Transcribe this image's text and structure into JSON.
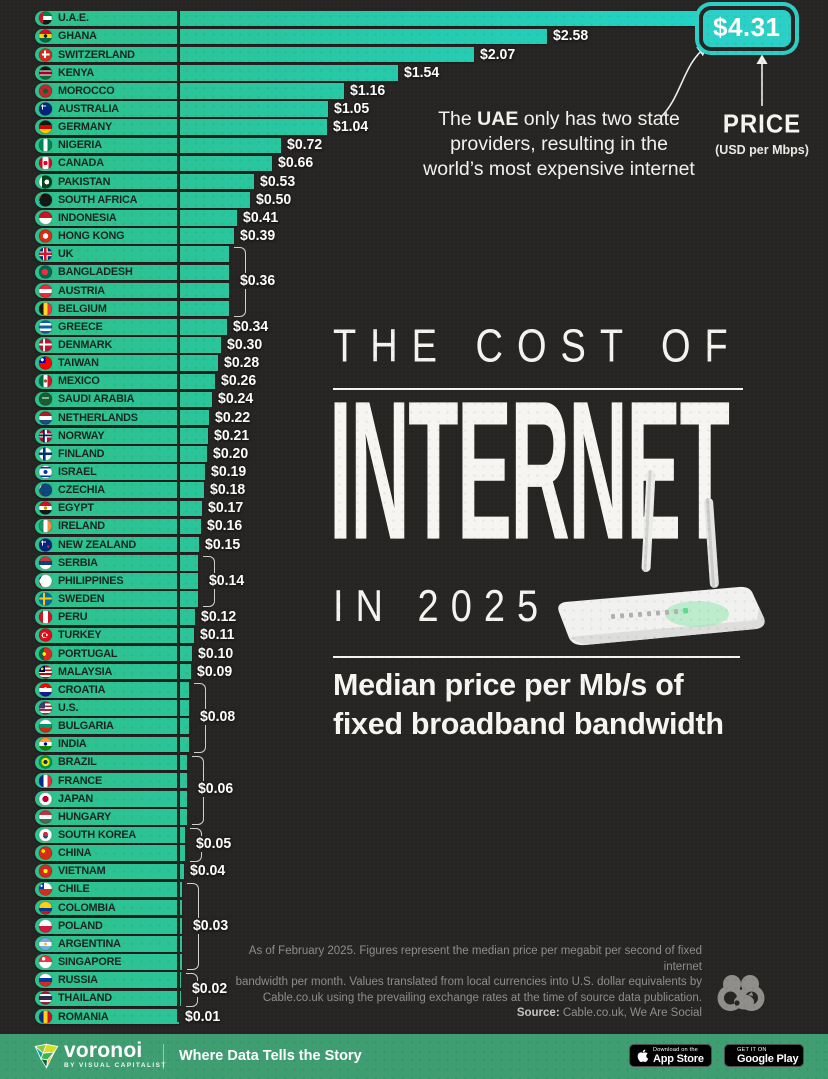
{
  "chart_data": {
    "type": "bar",
    "title": "THE COST OF INTERNET IN 2025",
    "subtitle": "Median price per Mb/s of fixed broadband bandwidth",
    "unit": "USD per Mbps",
    "source": "Cable.co.uk, We Are Social",
    "xlim": [
      0,
      4.31
    ],
    "categories": [
      "U.A.E.",
      "GHANA",
      "SWITZERLAND",
      "KENYA",
      "MOROCCO",
      "AUSTRALIA",
      "GERMANY",
      "NIGERIA",
      "CANADA",
      "PAKISTAN",
      "SOUTH AFRICA",
      "INDONESIA",
      "HONG KONG",
      "UK",
      "BANGLADESH",
      "AUSTRIA",
      "BELGIUM",
      "GREECE",
      "DENMARK",
      "TAIWAN",
      "MEXICO",
      "SAUDI ARABIA",
      "NETHERLANDS",
      "NORWAY",
      "FINLAND",
      "ISRAEL",
      "CZECHIA",
      "EGYPT",
      "IRELAND",
      "NEW ZEALAND",
      "SERBIA",
      "PHILIPPINES",
      "SWEDEN",
      "PERU",
      "TURKEY",
      "PORTUGAL",
      "MALAYSIA",
      "CROATIA",
      "U.S.",
      "BULGARIA",
      "INDIA",
      "BRAZIL",
      "FRANCE",
      "JAPAN",
      "HUNGARY",
      "SOUTH KOREA",
      "CHINA",
      "VIETNAM",
      "CHILE",
      "COLOMBIA",
      "POLAND",
      "ARGENTINA",
      "SINGAPORE",
      "RUSSIA",
      "THAILAND",
      "ROMANIA"
    ],
    "values": [
      4.31,
      2.58,
      2.07,
      1.54,
      1.16,
      1.05,
      1.04,
      0.72,
      0.66,
      0.53,
      0.5,
      0.41,
      0.39,
      0.36,
      0.36,
      0.36,
      0.36,
      0.34,
      0.3,
      0.28,
      0.26,
      0.24,
      0.22,
      0.21,
      0.2,
      0.19,
      0.18,
      0.17,
      0.16,
      0.15,
      0.14,
      0.14,
      0.14,
      0.12,
      0.11,
      0.1,
      0.09,
      0.08,
      0.08,
      0.08,
      0.08,
      0.06,
      0.06,
      0.06,
      0.06,
      0.05,
      0.05,
      0.04,
      0.03,
      0.03,
      0.03,
      0.03,
      0.03,
      0.02,
      0.02,
      0.01
    ],
    "labels": [
      "$4.31",
      "$2.58",
      "$2.07",
      "$1.54",
      "$1.16",
      "$1.05",
      "$1.04",
      "$0.72",
      "$0.66",
      "$0.53",
      "$0.50",
      "$0.41",
      "$0.39",
      "$0.36",
      "$0.36",
      "$0.36",
      "$0.36",
      "$0.34",
      "$0.30",
      "$0.28",
      "$0.26",
      "$0.24",
      "$0.22",
      "$0.21",
      "$0.20",
      "$0.19",
      "$0.18",
      "$0.17",
      "$0.16",
      "$0.15",
      "$0.14",
      "$0.14",
      "$0.14",
      "$0.12",
      "$0.11",
      "$0.10",
      "$0.09",
      "$0.08",
      "$0.08",
      "$0.08",
      "$0.08",
      "$0.06",
      "$0.06",
      "$0.06",
      "$0.06",
      "$0.05",
      "$0.05",
      "$0.04",
      "$0.03",
      "$0.03",
      "$0.03",
      "$0.03",
      "$0.03",
      "$0.02",
      "$0.02",
      "$0.01"
    ],
    "groups": [
      {
        "from": 13,
        "to": 16,
        "label": "$0.36"
      },
      {
        "from": 30,
        "to": 32,
        "label": "$0.14"
      },
      {
        "from": 37,
        "to": 40,
        "label": "$0.08"
      },
      {
        "from": 41,
        "to": 44,
        "label": "$0.06"
      },
      {
        "from": 45,
        "to": 46,
        "label": "$0.05"
      },
      {
        "from": 48,
        "to": 52,
        "label": "$0.03"
      },
      {
        "from": 53,
        "to": 54,
        "label": "$0.02"
      }
    ],
    "flags": [
      "linear-gradient(90deg,#ce1126 0 30%,rgba(0,0,0,0) 30%),linear-gradient(180deg,#00843d 0 34%,#fff 34% 67%,#151515 67%)",
      "radial-gradient(circle 1.8px at 50% 50%,#111 97%,rgba(0,0,0,0)),linear-gradient(180deg,#ce1126 0 34%,#fcd116 34% 67%,#006b3f 67%)",
      "linear-gradient(#fff,#fff) 50% 50%/58% 17% no-repeat,linear-gradient(#fff,#fff) 50% 50%/17% 58% no-repeat,#d52b1e",
      "linear-gradient(180deg,#151515 0 30%,#fff 30% 38%,#a2001d 38% 62%,#fff 62% 70%,#046a38 70%)",
      "radial-gradient(circle 2.4px at 50% 50%,#006233 97%,rgba(0,0,0,0)),#c1272d",
      "linear-gradient(#fff,#fff) 26% 26%/42% 9% no-repeat,linear-gradient(#fff,#fff) 26% 26%/9% 42% no-repeat,#00247d",
      "linear-gradient(180deg,#151515 0 34%,#dd0000 34% 67%,#ffce00 67%)",
      "linear-gradient(90deg,#008751 0 34%,#fff 34% 67%,#008751 67%)",
      "radial-gradient(circle 2.2px at 50% 50%,#d80621 97%,rgba(0,0,0,0)),linear-gradient(90deg,#d80621 0 28%,#fff 28% 72%,#d80621 72%)",
      "radial-gradient(circle 2.4px at 60% 50%,#fff 97%,rgba(0,0,0,0)),linear-gradient(90deg,#fff 0 24%,#01411c 24%)",
      "conic-gradient(from 30deg at 0% 50%,#151515 0 120deg,rgba(0,0,0,0) 120deg),linear-gradient(180deg,#e03c31 0 38%,#fff 38% 45%,#007749 45% 58%,#fff 58% 64%,#001489 64%)",
      "linear-gradient(180deg,#ce1126 0 50%,#fff 50%)",
      "radial-gradient(circle 2.8px at 50% 50%,#fff 97%,rgba(0,0,0,0)),#de2910",
      "linear-gradient(#cf142b,#cf142b) 50% 50%/100% 20% no-repeat,linear-gradient(#cf142b,#cf142b) 50% 50%/20% 100% no-repeat,linear-gradient(#fff,#fff) 50% 50%/100% 36% no-repeat,linear-gradient(#fff,#fff) 50% 50%/36% 100% no-repeat,#00247d",
      "radial-gradient(circle 3.2px at 45% 50%,#f42a41 97%,rgba(0,0,0,0)),#006a4e",
      "linear-gradient(180deg,#ed2939 0 34%,#fff 34% 67%,#ed2939 67%)",
      "linear-gradient(90deg,#151515 0 34%,#fdda24 34% 67%,#ef3340 67%)",
      "linear-gradient(180deg,#0d5eaf 0 20%,#fff 20% 40%,#0d5eaf 40% 60%,#fff 60% 80%,#0d5eaf 80%)",
      "linear-gradient(#fff,#fff) 50% 50%/100% 18% no-repeat,linear-gradient(#fff,#fff) 40% 50%/18% 100% no-repeat,#c8102e",
      "radial-gradient(circle 1.6px at 25% 25%,#fff 97%,rgba(0,0,0,0)),linear-gradient(90deg,#000095 0 50%,rgba(0,0,0,0) 50%) 0 0/100% 50% no-repeat,#fe0000",
      "radial-gradient(circle 1.8px at 50% 50%,#8c6239 95%,rgba(0,0,0,0)),linear-gradient(90deg,#006847 0 34%,#fff 34% 67%,#ce1126 67%)",
      "linear-gradient(#fff,#fff) 50% 40%/56% 9% no-repeat,#165d31",
      "linear-gradient(180deg,#ae1c28 0 34%,#fff 34% 67%,#21468b 67%)",
      "linear-gradient(#00205b,#00205b) 50% 50%/100% 14% no-repeat,linear-gradient(#00205b,#00205b) 40% 50%/14% 100% no-repeat,linear-gradient(#fff,#fff) 50% 50%/100% 30% no-repeat,linear-gradient(#fff,#fff) 40% 50%/30% 100% no-repeat,#ba0c2f",
      "linear-gradient(#002f6c,#002f6c) 50% 50%/100% 20% no-repeat,linear-gradient(#002f6c,#002f6c) 40% 50%/20% 100% no-repeat,#fff",
      "radial-gradient(circle 2px at 50% 50%,#0038b8 95%,rgba(0,0,0,0)),linear-gradient(180deg,rgba(0,0,0,0) 0 12%,#0038b8 12% 24%,rgba(0,0,0,0) 24% 76%,#0038b8 76% 88%,rgba(0,0,0,0) 88%),#fff",
      "conic-gradient(from 30deg at 0% 50%,#11457e 0 120deg,rgba(0,0,0,0) 120deg),linear-gradient(180deg,#fff 0 50%,#d7141a 50%)",
      "radial-gradient(circle 1.8px at 50% 50%,#c09300 95%,rgba(0,0,0,0)),linear-gradient(180deg,#ce1126 0 34%,#fff 34% 67%,#151515 67%)",
      "linear-gradient(90deg,#169b62 0 34%,#fff 34% 67%,#ff883e 67%)",
      "radial-gradient(circle 1.4px at 72% 62%,#cc142b 97%,rgba(0,0,0,0)),linear-gradient(#fff,#fff) 26% 26%/42% 9% no-repeat,linear-gradient(#fff,#fff) 26% 26%/9% 42% no-repeat,#00247d",
      "linear-gradient(180deg,#c6363c 0 34%,#0c4076 34% 67%,#fff 67%)",
      "conic-gradient(from 30deg at 0% 50%,#fff 0 120deg,rgba(0,0,0,0) 120deg),linear-gradient(180deg,#0038a8 0 50%,#ce1126 50%)",
      "linear-gradient(#fecc02,#fecc02) 50% 50%/100% 18% no-repeat,linear-gradient(#fecc02,#fecc02) 40% 50%/18% 100% no-repeat,#006aa7",
      "linear-gradient(90deg,#d91023 0 32%,#fff 32% 68%,#d91023 68%)",
      "radial-gradient(circle 1px at 60% 50%,#fff 95%,rgba(0,0,0,0)),radial-gradient(circle 2.1px at 46% 52%,#e30a17 97%,rgba(0,0,0,0)),radial-gradient(circle 2.8px at 42% 52%,#fff 97%,rgba(0,0,0,0)),#e30a17",
      "radial-gradient(circle 1.9px at 40% 50%,#ffe900 95%,rgba(0,0,0,0)),linear-gradient(90deg,#046a38 0 40%,#da291c 40%)",
      "radial-gradient(circle 1.4px at 24% 26%,#ffcc00 95%,rgba(0,0,0,0)),linear-gradient(90deg,#010066 0 48%,rgba(0,0,0,0) 48%) 0 0/100% 50% no-repeat,repeating-linear-gradient(180deg,#cc0001 0 1.9px,#fff 1.9px 3.8px)",
      "radial-gradient(circle 1.8px at 50% 42%,#fff 95%,rgba(0,0,0,0)),linear-gradient(180deg,#ff0000 0 34%,#fff 34% 67%,#171796 67%)",
      "linear-gradient(90deg,#3c3b6e 0 45%,rgba(0,0,0,0) 45%) 0 0/100% 54% no-repeat,repeating-linear-gradient(180deg,#b22234 0 1.9px,#fff 1.9px 3.8px)",
      "linear-gradient(180deg,#fff 0 34%,#00966e 34% 67%,#d62612 67%)",
      "radial-gradient(circle 1.8px at 50% 50%,#000088 95%,rgba(0,0,0,0)),linear-gradient(180deg,#ff9933 0 34%,#fff 34% 67%,#138808 67%)",
      "radial-gradient(circle 2px at 50% 50%,#002776 97%,rgba(0,0,0,0)),radial-gradient(circle 4.2px at 50% 50%,#ffdf00 97%,rgba(0,0,0,0)),#009c3b",
      "linear-gradient(90deg,#002395 0 34%,#fff 34% 67%,#ed2939 67%)",
      "radial-gradient(circle 3.2px at 50% 50%,#bc002d 97%,rgba(0,0,0,0)),#fff",
      "linear-gradient(180deg,#cd2a3e 0 34%,#fff 34% 67%,#436f4d 67%)",
      "radial-gradient(circle 2.4px at 50% 44%,#cd2e3a 97%,rgba(0,0,0,0)),radial-gradient(circle 2.4px at 50% 58%,#0047a0 97%,rgba(0,0,0,0)),#fff",
      "radial-gradient(circle 1.9px at 32% 35%,#ffde00 95%,rgba(0,0,0,0)),#de2910",
      "radial-gradient(circle 2.2px at 50% 50%,#ffff00 95%,rgba(0,0,0,0)),#da251d",
      "radial-gradient(circle 1.2px at 19% 25%,#fff 95%,rgba(0,0,0,0)),linear-gradient(90deg,#0039a6 0 38%,rgba(0,0,0,0) 38%) 0 0/100% 50% no-repeat,linear-gradient(180deg,#fff 0 50%,#d52b1e 50%)",
      "linear-gradient(180deg,#fcd116 0 50%,#003893 50% 75%,#ce1126 75%)",
      "linear-gradient(180deg,#fff 0 50%,#dc143c 50%)",
      "radial-gradient(circle 1.4px at 50% 50%,#f6b40e 95%,rgba(0,0,0,0)),linear-gradient(180deg,#74acdf 0 34%,#fff 34% 67%,#74acdf 67%)",
      "radial-gradient(circle 1.8px at 35% 26%,#fff 95%,rgba(0,0,0,0)),linear-gradient(180deg,#ef3340 0 50%,#fff 50%)",
      "linear-gradient(180deg,#fff 0 34%,#0039a6 34% 67%,#d52b1e 67%)",
      "linear-gradient(180deg,#a51931 0 18%,#f4f5f8 18% 36%,#2d2a4a 36% 64%,#f4f5f8 64% 82%,#a51931 82%)",
      "linear-gradient(90deg,#002b7f 0 34%,#fcd116 34% 67%,#ce1126 67%)"
    ]
  },
  "annotation": {
    "prefix": "The ",
    "bold": "UAE",
    "suffix": " only has two state providers, resulting in the world’s most expensive internet",
    "badge": "$4.31",
    "price_label": "PRICE",
    "price_sub": "(USD per Mbps)"
  },
  "title": {
    "line1": "THE COST OF",
    "line2": "INTERNET",
    "line3": "IN 2025"
  },
  "subtitle": {
    "line1": "Median price per Mb/s of",
    "line2": "fixed broadband bandwidth"
  },
  "footnote": {
    "line1": "As of February 2025. Figures represent the median price per megabit per second of fixed internet",
    "line2": "bandwidth per month. Values translated from local currencies into U.S. dollar equivalents by",
    "line3": "Cable.co.uk using the prevailing exchange rates at the time of source data publication.",
    "source_label": "Source:",
    "source_rest": " Cable.co.uk, We Are Social"
  },
  "footer": {
    "brand": "voronoi",
    "brand_sub": "BY VISUAL CAPITALIST",
    "tagline": "Where Data Tells the Story",
    "appstore_line1": "Download on the",
    "appstore_line2": "App Store",
    "googleplay_line1": "GET IT ON",
    "googleplay_line2": "Google Play"
  },
  "colors": {
    "background": "#262523",
    "bar_start": "#2ec08b",
    "bar_end": "#1fd6cd",
    "badge_teal": "#2ad0c6",
    "footer_green": "#3f9d72",
    "label_dark": "#17251e",
    "text_light": "#f4f3f0",
    "footnote_gray": "#8f8e8b"
  }
}
